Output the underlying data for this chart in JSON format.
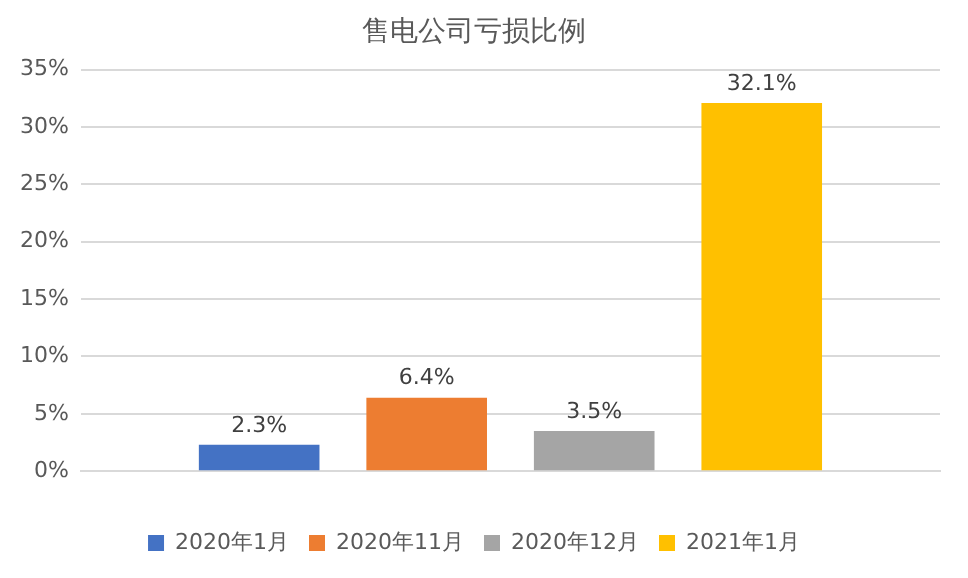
{
  "chart_data": {
    "type": "bar",
    "title": "售电公司亏损比例",
    "categories": [
      null
    ],
    "series": [
      {
        "name": "2020年1月",
        "color": "#4472c4",
        "values": [
          2.3
        ],
        "value_labels": [
          "2.3%"
        ]
      },
      {
        "name": "2020年11月",
        "color": "#ed7d31",
        "values": [
          6.4
        ],
        "value_labels": [
          "6.4%"
        ]
      },
      {
        "name": "2020年12月",
        "color": "#a5a5a5",
        "values": [
          3.5
        ],
        "value_labels": [
          "3.5%"
        ]
      },
      {
        "name": "2021年1月",
        "color": "#ffc000",
        "values": [
          32.1
        ],
        "value_labels": [
          "32.1%"
        ]
      }
    ],
    "ylim": [
      0,
      35
    ],
    "yticks": [
      {
        "value": 0,
        "label": "0%"
      },
      {
        "value": 5,
        "label": "5%"
      },
      {
        "value": 10,
        "label": "10%"
      },
      {
        "value": 15,
        "label": "15%"
      },
      {
        "value": 20,
        "label": "20%"
      },
      {
        "value": 25,
        "label": "25%"
      },
      {
        "value": 30,
        "label": "30%"
      },
      {
        "value": 35,
        "label": "35%"
      }
    ],
    "grid": "y",
    "legend": "bottom"
  }
}
